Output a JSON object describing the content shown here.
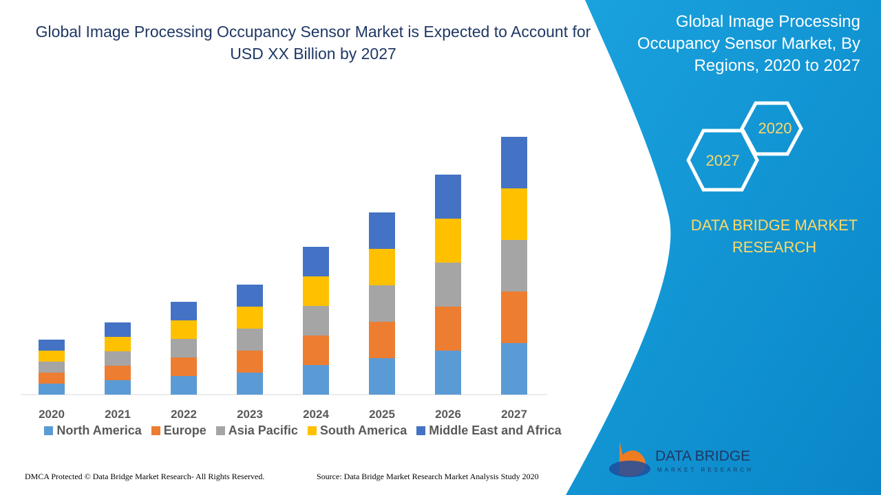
{
  "chart_data": {
    "type": "bar",
    "stacked": true,
    "title": "Global Image Processing Occupancy Sensor Market is Expected to Account for USD XX Billion by 2027",
    "categories": [
      "2020",
      "2021",
      "2022",
      "2023",
      "2024",
      "2025",
      "2026",
      "2027"
    ],
    "series": [
      {
        "name": "North America",
        "color": "#5b9bd5",
        "values": [
          16,
          21,
          27,
          32,
          43,
          53,
          64,
          75
        ]
      },
      {
        "name": "Europe",
        "color": "#ed7d31",
        "values": [
          16,
          21,
          27,
          32,
          43,
          53,
          64,
          75
        ]
      },
      {
        "name": "Asia Pacific",
        "color": "#a5a5a5",
        "values": [
          16,
          21,
          27,
          32,
          43,
          53,
          64,
          75
        ]
      },
      {
        "name": "South America",
        "color": "#ffc000",
        "values": [
          16,
          21,
          27,
          32,
          43,
          53,
          64,
          75
        ]
      },
      {
        "name": "Middle East and Africa",
        "color": "#4472c4",
        "values": [
          16,
          21,
          27,
          32,
          43,
          53,
          64,
          75
        ]
      }
    ]
  },
  "panel": {
    "title": "Global Image Processing Occupancy Sensor Market, By Regions, 2020 to 2027",
    "hexagons": [
      "2020",
      "2027"
    ],
    "brand": "DATA BRIDGE MARKET RESEARCH",
    "logo": "DATA BRIDGE",
    "logo_tagline": "MARKET RESEARCH"
  },
  "footer": {
    "dmca": "DMCA Protected © Data Bridge Market Research- All Rights Reserved.",
    "source": "Source: Data Bridge Market Research Market Analysis Study 2020"
  }
}
